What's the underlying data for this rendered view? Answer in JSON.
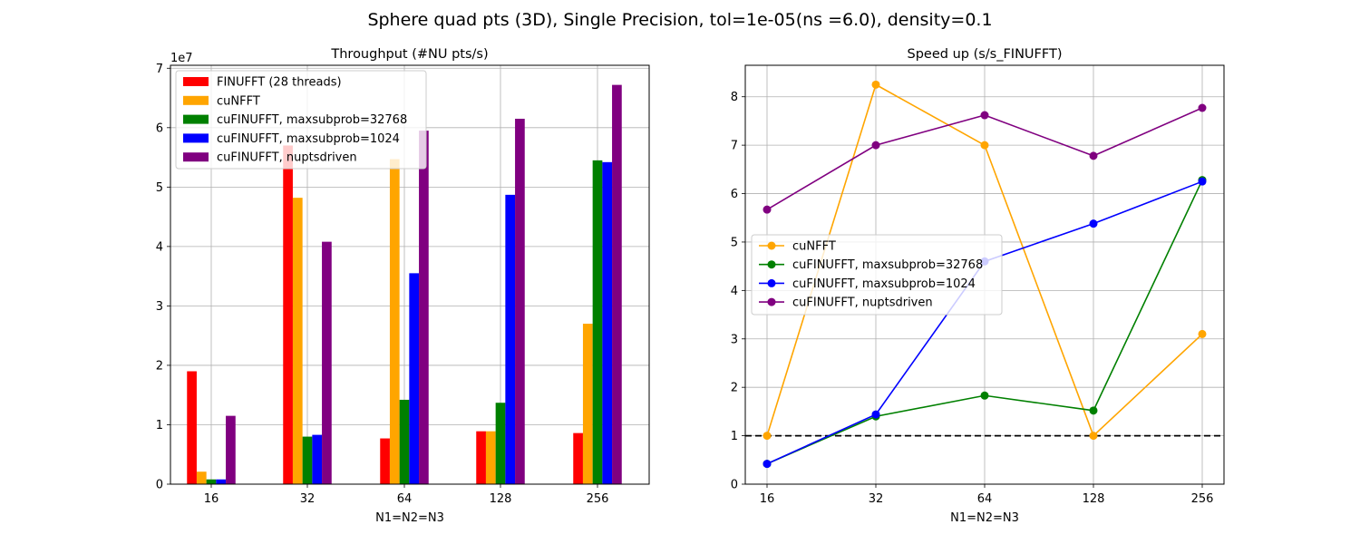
{
  "suptitle": "Sphere quad pts (3D), Single Precision, tol=1e-05(ns =6.0), density=0.1",
  "chart_data": [
    {
      "type": "bar",
      "title": "Throughput (#NU pts/s)",
      "xlabel": "N1=N2=N3",
      "ylabel": "",
      "offset_text": "1e7",
      "categories": [
        "16",
        "32",
        "64",
        "128",
        "256"
      ],
      "ylim": [
        0,
        70500000.0
      ],
      "yticks": [
        0,
        10000000.0,
        20000000.0,
        30000000.0,
        40000000.0,
        50000000.0,
        60000000.0,
        70000000.0
      ],
      "ytick_labels": [
        "0",
        "1",
        "2",
        "3",
        "4",
        "5",
        "6",
        "7"
      ],
      "grid": true,
      "legend_position": "upper left",
      "series": [
        {
          "name": "FINUFFT (28 threads)",
          "color": "#ff0000",
          "values": [
            19000000.0,
            57000000.0,
            7700000.0,
            8900000.0,
            8600000.0
          ]
        },
        {
          "name": "cuNFFT",
          "color": "#ffa500",
          "values": [
            2100000.0,
            48200000.0,
            54700000.0,
            8900000.0,
            27000000.0
          ]
        },
        {
          "name": "cuFINUFFT, maxsubprob=32768",
          "color": "#008000",
          "values": [
            800000.0,
            8000000.0,
            14200000.0,
            13700000.0,
            54500000.0
          ]
        },
        {
          "name": "cuFINUFFT, maxsubprob=1024",
          "color": "#0000ff",
          "values": [
            800000.0,
            8300000.0,
            35500000.0,
            48700000.0,
            54200000.0
          ]
        },
        {
          "name": "cuFINUFFT, nuptsdriven",
          "color": "#800080",
          "values": [
            11500000.0,
            40800000.0,
            59500000.0,
            61500000.0,
            67200000.0
          ]
        }
      ]
    },
    {
      "type": "line",
      "title": "Speed up (s/s_FINUFFT)",
      "xlabel": "N1=N2=N3",
      "ylabel": "",
      "categories": [
        "16",
        "32",
        "64",
        "128",
        "256"
      ],
      "ylim": [
        0,
        8.65
      ],
      "yticks": [
        0,
        1,
        2,
        3,
        4,
        5,
        6,
        7,
        8
      ],
      "ytick_labels": [
        "0",
        "1",
        "2",
        "3",
        "4",
        "5",
        "6",
        "7",
        "8"
      ],
      "grid": true,
      "reference_line": {
        "y": 1,
        "style": "dashed",
        "color": "#000000"
      },
      "legend_position": "center left",
      "series": [
        {
          "name": "cuNFFT",
          "color": "#ffa500",
          "values": [
            1.0,
            8.25,
            7.0,
            1.0,
            3.1
          ]
        },
        {
          "name": "cuFINUFFT, maxsubprob=32768",
          "color": "#008000",
          "values": [
            0.42,
            1.4,
            1.83,
            1.52,
            6.28
          ]
        },
        {
          "name": "cuFINUFFT, maxsubprob=1024",
          "color": "#0000ff",
          "values": [
            0.42,
            1.44,
            4.6,
            5.38,
            6.25
          ]
        },
        {
          "name": "cuFINUFFT, nuptsdriven",
          "color": "#800080",
          "values": [
            5.67,
            7.0,
            7.62,
            6.78,
            7.77
          ]
        }
      ]
    }
  ]
}
